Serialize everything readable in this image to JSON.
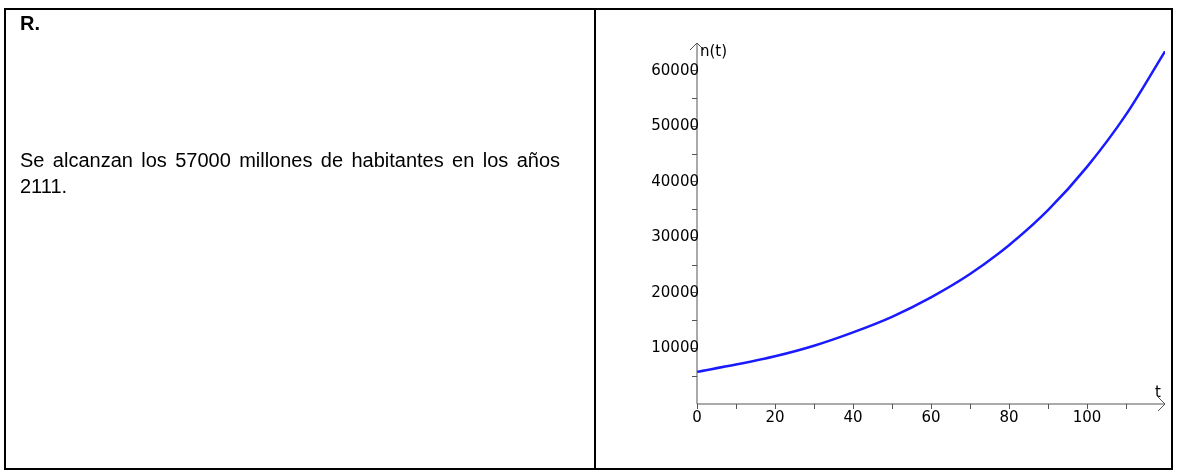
{
  "chart_data": {
    "type": "line",
    "xlabel": "t",
    "ylabel": "n(t)",
    "annotations": [
      "R.",
      "Se alcanzan los 57000 millones de habitantes en los años 2111."
    ],
    "x": [
      0,
      10,
      20,
      30,
      40,
      50,
      60,
      70,
      80,
      90,
      100,
      110,
      120
    ],
    "series": [
      {
        "color": "#1a1aff",
        "values": [
          5800,
          7100,
          8600,
          10500,
          12900,
          15700,
          19200,
          23400,
          28600,
          34900,
          42700,
          52100,
          63500
        ]
      }
    ],
    "xlim": [
      0,
      120
    ],
    "ylim": [
      0,
      65000
    ],
    "xticks": [
      0,
      {
        "value": 10,
        "label": null
      },
      20,
      {
        "value": 30,
        "label": null
      },
      40,
      {
        "value": 50,
        "label": null
      },
      60,
      {
        "value": 70,
        "label": null
      },
      80,
      {
        "value": 90,
        "label": null
      },
      100,
      {
        "value": 110,
        "label": null
      }
    ],
    "yticks": [
      {
        "value": 5000,
        "label": null
      },
      10000,
      {
        "value": 15000,
        "label": null
      },
      20000,
      {
        "value": 25000,
        "label": null
      },
      30000,
      {
        "value": 35000,
        "label": null
      },
      40000,
      {
        "value": 45000,
        "label": null
      },
      50000,
      {
        "value": 55000,
        "label": null
      },
      60000
    ],
    "grid": false,
    "legend": false,
    "marker": "none",
    "line_style": "solid"
  }
}
